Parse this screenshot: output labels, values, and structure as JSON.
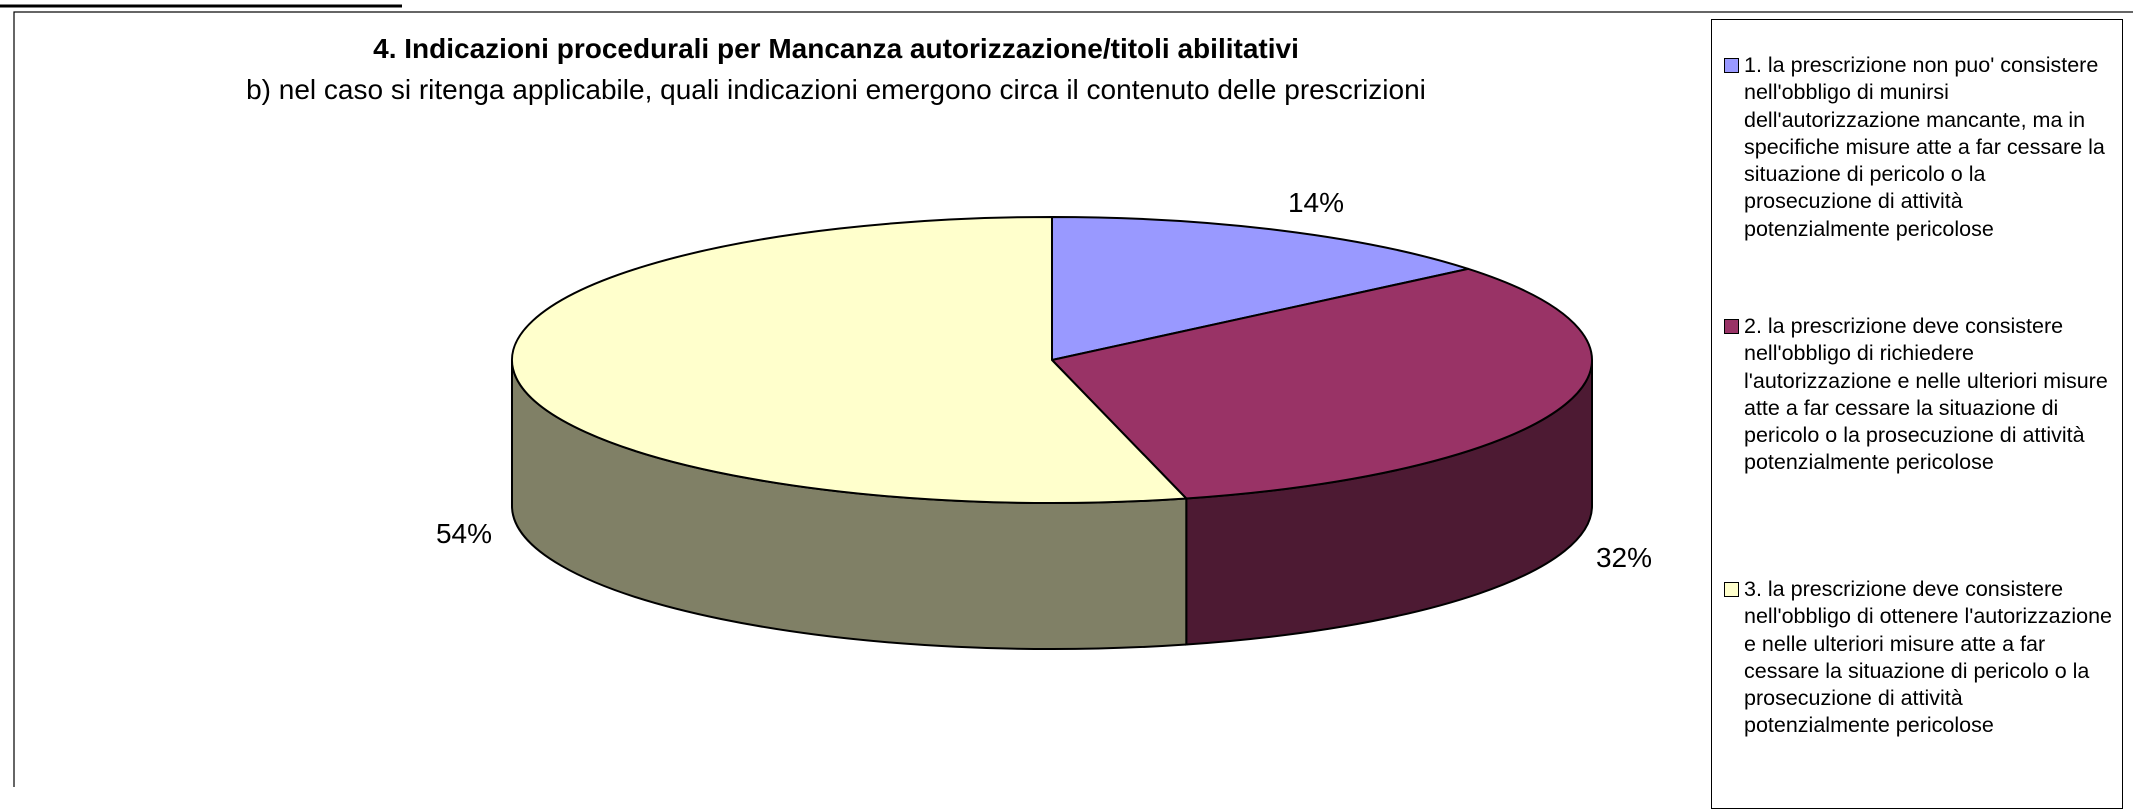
{
  "chart_data": {
    "type": "pie3d",
    "title": "4. Indicazioni procedurali per Mancanza autorizzazione/titoli abilitativi",
    "subtitle": "b) nel caso si ritenga applicabile, quali indicazioni emergono circa il contenuto delle prescrizioni",
    "categories": [
      "1. la prescrizione non puo' consistere nell'obbligo di munirsi dell'autorizzazione mancante, ma in specifiche misure atte a far cessare la situazione di pericolo o la prosecuzione di attività potenzialmente pericolose",
      "2. la prescrizione deve consistere nell'obbligo di richiedere l'autorizzazione e nelle ulteriori misure atte a  far cessare la situazione di pericolo o la prosecuzione di attività potenzialmente pericolose",
      "3. la prescrizione deve consistere nell'obbligo di ottenere l'autorizzazione e nelle ulteriori misure atte a  far cessare la situazione di pericolo o la prosecuzione di attività potenzialmente pericolose"
    ],
    "values": [
      14,
      32,
      54
    ],
    "value_labels": [
      "14%",
      "32%",
      "54%"
    ],
    "colors": [
      "#9999ff",
      "#993366",
      "#ffffcc"
    ],
    "legend": "right"
  }
}
